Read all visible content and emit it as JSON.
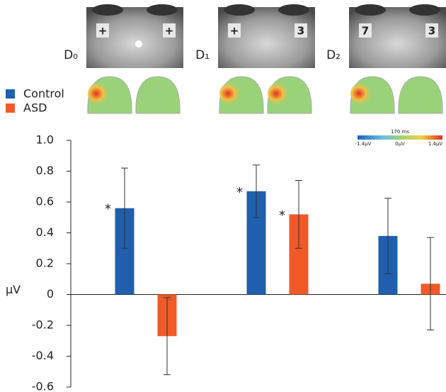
{
  "chart_data": {
    "type": "bar",
    "categories": [
      "D₀",
      "D₁",
      "D₂"
    ],
    "series": [
      {
        "name": "Control",
        "color": "#1f5fae",
        "values": [
          0.56,
          0.67,
          0.38
        ],
        "errors": [
          0.26,
          0.17,
          0.245
        ],
        "significance": [
          "*",
          "*",
          null
        ]
      },
      {
        "name": "ASD",
        "color": "#ef5a28",
        "values": [
          -0.27,
          0.52,
          0.07
        ],
        "errors": [
          0.25,
          0.22,
          0.3
        ],
        "significance": [
          null,
          "*",
          null
        ]
      }
    ],
    "ylabel": "µV",
    "ylim": [
      -0.6,
      1.0
    ],
    "yticks": [
      {
        "value": 1,
        "label": "1.0"
      },
      0.8,
      0.6,
      0.4,
      0.2,
      0,
      -0.2,
      -0.4,
      -0.6
    ],
    "legend": "left"
  },
  "stimuli": [
    [
      "+",
      "+"
    ],
    [
      "+",
      "3"
    ],
    [
      "7",
      "3"
    ]
  ],
  "colorbar": {
    "title": "170 ms",
    "labels": [
      "-1.4µV",
      "0µV",
      "1.4µV"
    ]
  }
}
